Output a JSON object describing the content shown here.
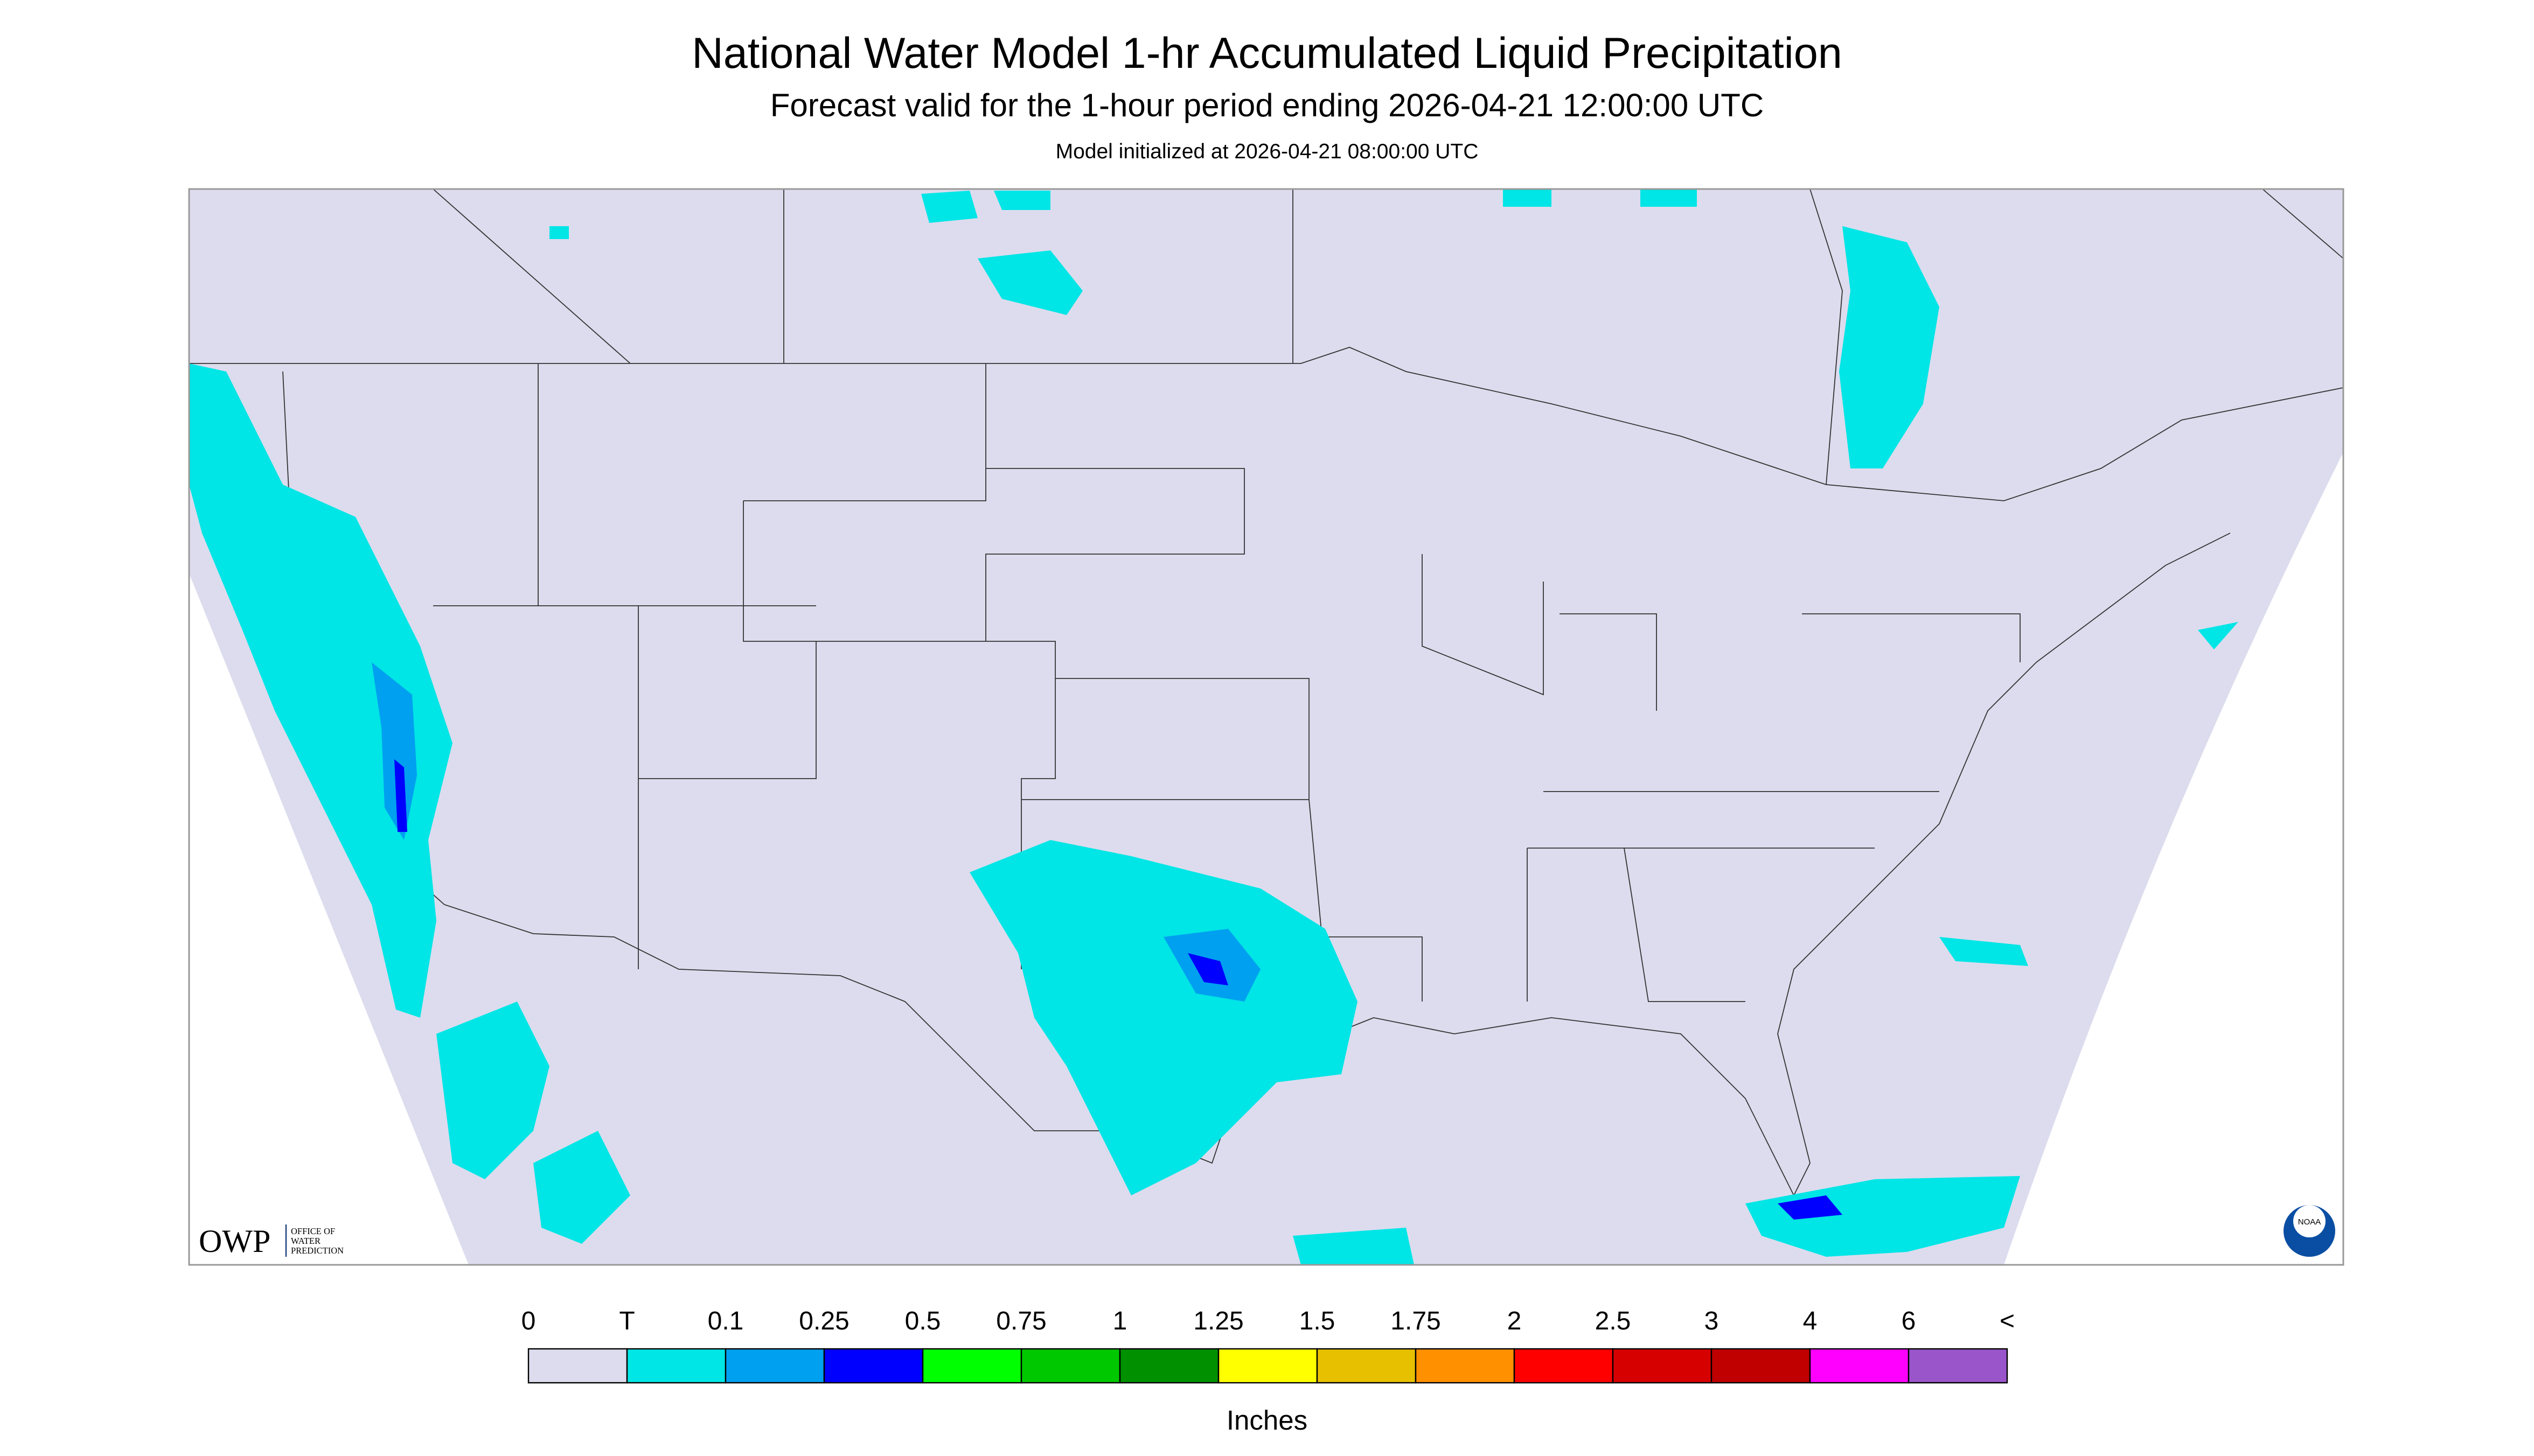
{
  "header": {
    "title": "National Water Model 1-hr Accumulated Liquid Precipitation",
    "subtitle": "Forecast valid for the 1-hour period ending 2026-04-21 12:00:00 UTC",
    "init": "Model initialized at 2026-04-21 08:00:00 UTC"
  },
  "logo": {
    "owp": "OWP",
    "office": [
      "OFFICE OF",
      "WATER",
      "PREDICTION"
    ],
    "noaa": "NOAA"
  },
  "legend": {
    "labels": [
      "0",
      "T",
      "0.1",
      "0.25",
      "0.5",
      "0.75",
      "1",
      "1.25",
      "1.5",
      "1.75",
      "2",
      "2.5",
      "3",
      "4",
      "6",
      "<"
    ],
    "colors": [
      "#dcdcee",
      "#00e5e5",
      "#00a0f0",
      "#0000ff",
      "#00ff00",
      "#00c800",
      "#009000",
      "#ffff00",
      "#e7c000",
      "#ff9000",
      "#ff0000",
      "#d60000",
      "#c00000",
      "#ff00ff",
      "#9955c9"
    ],
    "unit": "Inches"
  }
}
